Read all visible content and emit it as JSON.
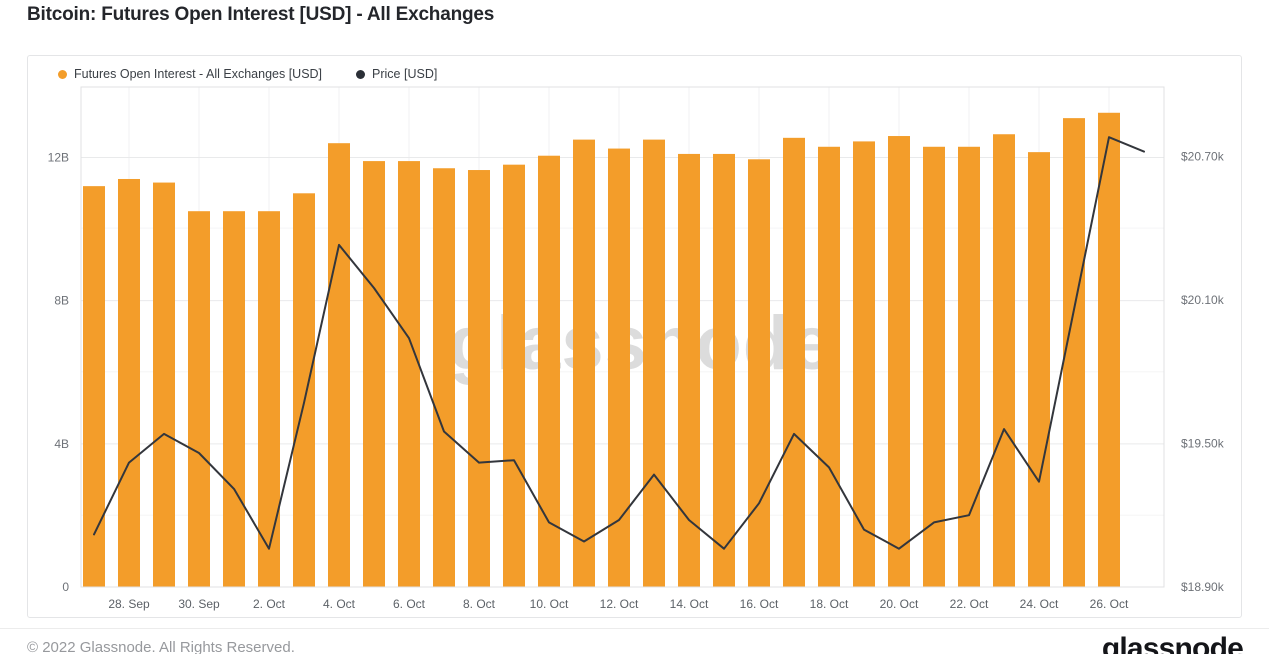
{
  "title": "Bitcoin: Futures Open Interest [USD] - All Exchanges",
  "legend": {
    "oi_label": "Futures Open Interest - All Exchanges [USD]",
    "price_label": "Price [USD]"
  },
  "watermark": "glassnode",
  "footer": {
    "copyright": "© 2022 Glassnode. All Rights Reserved.",
    "brand": "glassnode"
  },
  "colors": {
    "bar": "#F39D2A",
    "price_line": "#33363C",
    "legend_price_dot": "#2B3037",
    "grid_major": "#e9eaeb",
    "grid_minor": "#f5f5f6",
    "grid_vertical": "#f2f2f3",
    "plot_border": "#e0e1e3",
    "axis_text": "#6e7278",
    "x_axis_text": "#5c6167",
    "watermark": "#dcdcdc",
    "title_text": "#24262b"
  },
  "chart_data": {
    "type": "bar",
    "title": "Bitcoin: Futures Open Interest [USD] - All Exchanges",
    "legend_position": "top-left",
    "grid": "horizontal major + minor, faint vertical at date ticks",
    "series": [
      {
        "name": "Futures Open Interest - All Exchanges [USD]",
        "type": "bar",
        "axis": "left",
        "unit": "USD billions",
        "dates": [
          "2022-09-27",
          "2022-09-28",
          "2022-09-29",
          "2022-09-30",
          "2022-10-01",
          "2022-10-02",
          "2022-10-03",
          "2022-10-04",
          "2022-10-05",
          "2022-10-06",
          "2022-10-07",
          "2022-10-08",
          "2022-10-09",
          "2022-10-10",
          "2022-10-11",
          "2022-10-12",
          "2022-10-13",
          "2022-10-14",
          "2022-10-15",
          "2022-10-16",
          "2022-10-17",
          "2022-10-18",
          "2022-10-19",
          "2022-10-20",
          "2022-10-21",
          "2022-10-22",
          "2022-10-23",
          "2022-10-24",
          "2022-10-25",
          "2022-10-26"
        ],
        "values": [
          11.2,
          11.4,
          11.3,
          10.5,
          10.5,
          10.5,
          11.0,
          12.4,
          11.9,
          11.9,
          11.7,
          11.65,
          11.8,
          12.05,
          12.5,
          12.25,
          12.5,
          12.1,
          12.1,
          11.95,
          12.55,
          12.3,
          12.45,
          12.6,
          12.3,
          12.3,
          12.65,
          12.15,
          13.1,
          13.25
        ]
      },
      {
        "name": "Price [USD]",
        "type": "line",
        "axis": "right",
        "unit": "USD thousands",
        "dates": [
          "2022-09-27",
          "2022-09-28",
          "2022-09-29",
          "2022-09-30",
          "2022-10-01",
          "2022-10-02",
          "2022-10-03",
          "2022-10-04",
          "2022-10-05",
          "2022-10-06",
          "2022-10-07",
          "2022-10-08",
          "2022-10-09",
          "2022-10-10",
          "2022-10-11",
          "2022-10-12",
          "2022-10-13",
          "2022-10-14",
          "2022-10-15",
          "2022-10-16",
          "2022-10-17",
          "2022-10-18",
          "2022-10-19",
          "2022-10-20",
          "2022-10-21",
          "2022-10-22",
          "2022-10-23",
          "2022-10-24",
          "2022-10-25",
          "2022-10-26",
          "2022-10-27"
        ],
        "values": [
          19.12,
          19.42,
          19.54,
          19.46,
          19.31,
          19.06,
          19.67,
          20.33,
          20.15,
          19.94,
          19.55,
          19.42,
          19.43,
          19.17,
          19.09,
          19.18,
          19.37,
          19.18,
          19.06,
          19.25,
          19.54,
          19.4,
          19.14,
          19.06,
          19.17,
          19.2,
          19.56,
          19.34,
          20.06,
          20.78,
          20.72
        ]
      }
    ],
    "left_axis": {
      "min": 0,
      "max": 13.97,
      "tick_values": [
        0,
        4,
        8,
        12
      ],
      "tick_labels": [
        "0",
        "4B",
        "8B",
        "12B"
      ]
    },
    "right_axis": {
      "min": 18.9,
      "max": 20.99,
      "tick_values": [
        18.9,
        19.5,
        20.1,
        20.7
      ],
      "tick_labels": [
        "$18.90k",
        "$19.50k",
        "$20.10k",
        "$20.70k"
      ],
      "minor_tick_values": [
        19.2,
        19.8,
        20.4
      ]
    },
    "x_ticks": {
      "indices": [
        1,
        3,
        5,
        7,
        9,
        11,
        13,
        15,
        17,
        19,
        21,
        23,
        25,
        27,
        29
      ],
      "labels": [
        "28. Sep",
        "30. Sep",
        "2. Oct",
        "4. Oct",
        "6. Oct",
        "8. Oct",
        "10. Oct",
        "12. Oct",
        "14. Oct",
        "16. Oct",
        "18. Oct",
        "20. Oct",
        "22. Oct",
        "24. Oct",
        "26. Oct"
      ]
    }
  }
}
